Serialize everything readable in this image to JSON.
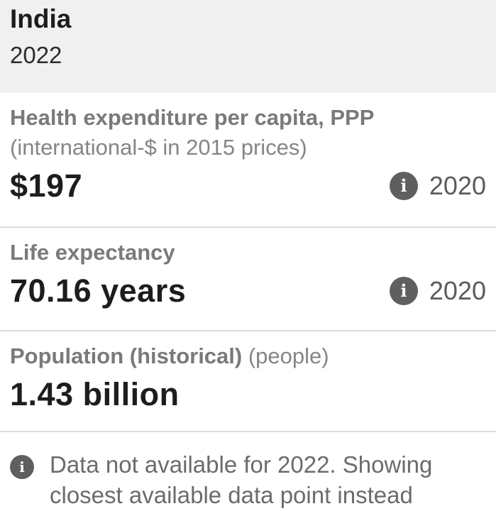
{
  "header": {
    "country": "India",
    "year": "2022"
  },
  "metrics": [
    {
      "name": "Health expenditure per capita, PPP",
      "unit": "(international-$ in 2015 prices)",
      "value": "$197",
      "time": "2020",
      "icon": "info-icon"
    },
    {
      "name": "Life expectancy",
      "unit": "",
      "value": "70.16 years",
      "time": "2020",
      "icon": "info-icon"
    },
    {
      "name": "Population (historical)",
      "unit": "(people)",
      "value": "1.43 billion"
    }
  ],
  "note": {
    "text": "Data not available for 2022. Showing closest available data point instead",
    "icon": "info-icon"
  },
  "colors": {
    "header_bg": "#f0f0f0",
    "divider": "#dcdcdc",
    "icon_bg": "#5f5f5f"
  }
}
